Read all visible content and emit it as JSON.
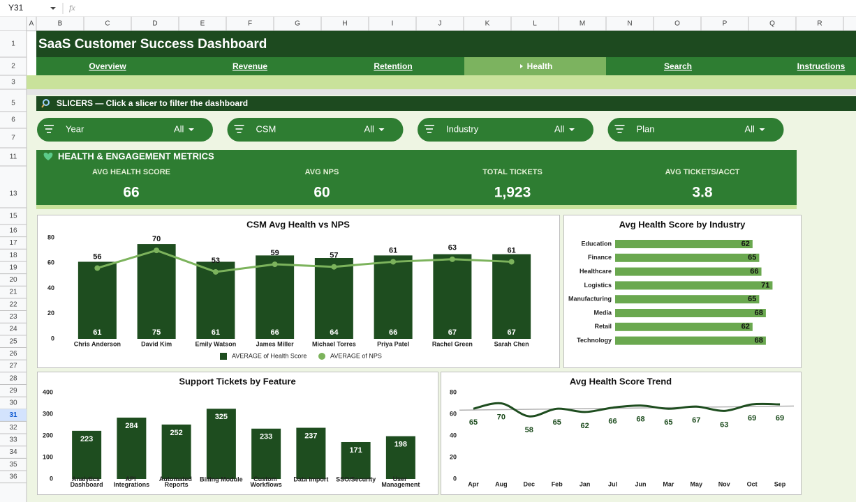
{
  "toolbar": {
    "cell_ref": "Y31",
    "formula_icon": "fx"
  },
  "columns": [
    "A",
    "B",
    "C",
    "D",
    "E",
    "F",
    "G",
    "H",
    "I",
    "J",
    "K",
    "L",
    "M",
    "N",
    "O",
    "P",
    "Q",
    "R"
  ],
  "rows": [
    1,
    2,
    3,
    5,
    6,
    7,
    11,
    13,
    15,
    16,
    17,
    18,
    19,
    20,
    21,
    22,
    23,
    24,
    25,
    26,
    27,
    28,
    29,
    30,
    31,
    32,
    33,
    34,
    35,
    36
  ],
  "selected_row": 31,
  "header": {
    "title": "SaaS Customer Success Dashboard",
    "nav": [
      "Overview",
      "Revenue",
      "Retention",
      "Health",
      "Search",
      "Instructions"
    ],
    "active_nav": 3
  },
  "slicers": {
    "title": "SLICERS — Click a slicer to filter the dashboard",
    "items": [
      {
        "label": "Year",
        "value": "All"
      },
      {
        "label": "CSM",
        "value": "All"
      },
      {
        "label": "Industry",
        "value": "All"
      },
      {
        "label": "Plan",
        "value": "All"
      }
    ]
  },
  "metrics": {
    "title": "HEALTH & ENGAGEMENT METRICS",
    "kpis": [
      {
        "label": "AVG HEALTH SCORE",
        "value": 66
      },
      {
        "label": "AVG NPS",
        "value": 60
      },
      {
        "label": "TOTAL TICKETS",
        "value": {
          "value": 1923,
          "label": "1,923"
        }
      },
      {
        "label": "AVG TICKETS/ACCT",
        "value": 3.8
      }
    ]
  },
  "charts": [
    {
      "type": "combo",
      "title": "CSM Avg Health vs NPS",
      "categories": [
        "Chris Anderson",
        "David Kim",
        "Emily Watson",
        "James Miller",
        "Michael Torres",
        "Priya Patel",
        "Rachel Green",
        "Sarah Chen"
      ],
      "series": [
        {
          "name": "AVERAGE of Health Score",
          "type": "bar",
          "color": "#1e4d1f",
          "values": [
            61,
            75,
            61,
            66,
            64,
            66,
            67,
            67
          ]
        },
        {
          "name": "AVERAGE of NPS",
          "type": "line",
          "color": "#7cb35c",
          "values": [
            56,
            70,
            53,
            59,
            57,
            61,
            63,
            61
          ]
        }
      ],
      "ylim": [
        0,
        80
      ],
      "yticks": [
        0,
        20,
        40,
        60,
        80
      ],
      "legend": "bottom"
    },
    {
      "type": "hbar",
      "title": "Avg Health Score by Industry",
      "categories": [
        "Education",
        "Finance",
        "Healthcare",
        "Logistics",
        "Manufacturing",
        "Media",
        "Retail",
        "Technology"
      ],
      "values": [
        62,
        65,
        66,
        71,
        65,
        68,
        62,
        68
      ],
      "color": "#6aa84f",
      "xlim": [
        0,
        80
      ]
    },
    {
      "type": "bar",
      "title": "Support Tickets by Feature",
      "categories": [
        "Analytics Dashboard",
        "API Integrations",
        "Automated Reports",
        "Billing Module",
        "Custom Workflows",
        "Data Import",
        "SSO/Security",
        "User Management"
      ],
      "values": [
        223,
        284,
        252,
        325,
        233,
        237,
        171,
        198
      ],
      "color": "#1e4d1f",
      "ylim": [
        0,
        400
      ],
      "yticks": [
        0,
        100,
        200,
        300,
        400
      ]
    },
    {
      "type": "line",
      "title": "Avg Health Score Trend",
      "categories": [
        "Apr",
        "Aug",
        "Dec",
        "Feb",
        "Jan",
        "Jul",
        "Jun",
        "Mar",
        "May",
        "Nov",
        "Oct",
        "Sep"
      ],
      "values": [
        65,
        70,
        58,
        65,
        62,
        66,
        68,
        65,
        67,
        63,
        69,
        69
      ],
      "color": "#1e4d1f",
      "ylim": [
        0,
        80
      ],
      "yticks": [
        0,
        20,
        40,
        60,
        80
      ],
      "smooth": true,
      "trendline": true,
      "trendline_color": "#b0b0b0"
    }
  ]
}
